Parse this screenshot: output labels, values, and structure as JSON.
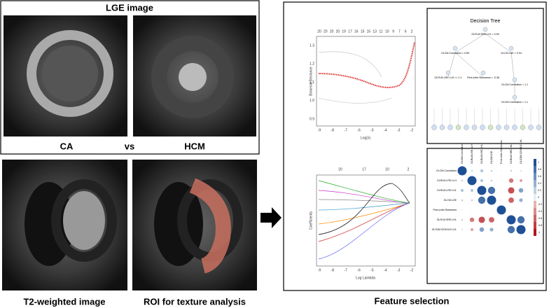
{
  "left": {
    "lge_title": "LGE image",
    "label_ca": "CA",
    "label_vs": "vs",
    "label_hcm": "HCM",
    "label_t2": "T2-weighted image",
    "label_roi": "ROI for texture analysis"
  },
  "feature_selection": {
    "title": "Feature selection",
    "deviance_plot": {
      "top_ticks": [
        "20",
        "20",
        "20",
        "20",
        "19",
        "17",
        "16",
        "15",
        "15",
        "13",
        "11",
        "10",
        "9",
        "7",
        "6",
        "2"
      ],
      "y_label": "Binomial Deviance",
      "x_label": "Log(λ)",
      "yticks": [
        "0.9",
        "1.0",
        "1.1",
        "1.2",
        "1.3"
      ],
      "xticks": [
        "-9",
        "-8",
        "-7",
        "-6",
        "-5",
        "-4",
        "-3",
        "-2"
      ]
    },
    "coef_plot": {
      "top_ticks": [
        "20",
        "17",
        "10",
        "2"
      ],
      "y_label": "Coefficients",
      "x_label": "Log Lambda",
      "xticks": [
        "-9",
        "-8",
        "-7",
        "-6",
        "-5",
        "-4",
        "-3",
        "-2"
      ]
    },
    "tree": {
      "title": "Decision Tree",
      "splits": [
        "GLRLM.SRE.LHL < 0.99",
        "GLCM.Correlation < 0.89",
        "GLCM.LDE < 0.94",
        "GLRLM.LRE.LLH >= 1.1",
        "First.order.Skewness < -0.38",
        "GLCM.Correlation < 1.1",
        "GLCM.Correlation < 1.1"
      ]
    },
    "corr": {
      "features": [
        "GLCM.Correlation",
        "GLRLM.LRE.LLH",
        "GLRLM.LRE.LHL",
        "GLCM.LDE",
        "First.order.Skewness",
        "GLRLM.SRE.LHL",
        "GLSZM.SZHGLE.LHL"
      ],
      "matrix": [
        [
          1,
          0.2,
          0.3,
          0.2,
          0.1,
          0.2,
          0.15
        ],
        [
          0.2,
          1,
          0.3,
          0.2,
          0.1,
          -0.5,
          -0.3
        ],
        [
          0.3,
          0.3,
          1,
          0.8,
          0.1,
          -0.7,
          0.5
        ],
        [
          0.2,
          0.2,
          0.8,
          1,
          0.1,
          -0.6,
          0.4
        ],
        [
          0.1,
          0.1,
          0.1,
          0.1,
          1,
          0.1,
          0.1
        ],
        [
          0.2,
          -0.5,
          -0.7,
          -0.6,
          0.1,
          1,
          0.8
        ],
        [
          0.15,
          -0.3,
          0.5,
          0.4,
          0.1,
          0.8,
          1
        ]
      ],
      "scale_ticks": [
        "1",
        "0.8",
        "0.6",
        "0.4",
        "0.2",
        "0",
        "-0.2",
        "-0.4",
        "-0.6",
        "-0.8",
        "-1"
      ]
    }
  }
}
